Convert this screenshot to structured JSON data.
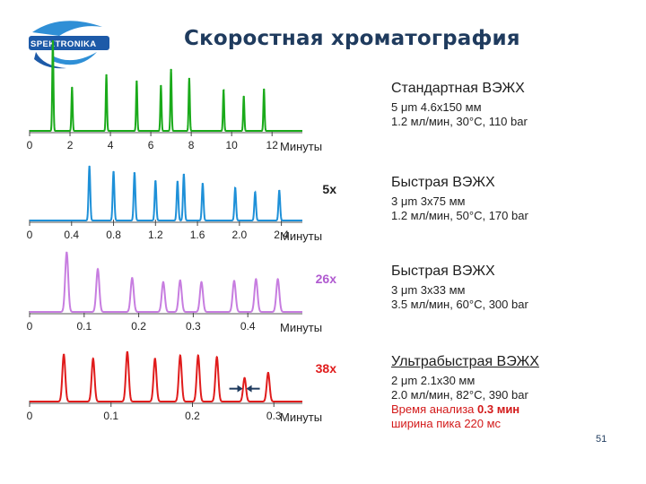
{
  "slide": {
    "title": "Скоростная хроматография",
    "logo_text": "SPEKTRONIKA",
    "page_number": "51",
    "logo_colors": {
      "blue": "#1d5aa8",
      "light": "#2f8fd6"
    }
  },
  "panels": [
    {
      "color": "#1aaa1a",
      "factor": "",
      "method": "Стандартная ВЭЖХ",
      "line1": "5 μm 4.6х150 мм",
      "line2": "1.2 мл/мин, 30°C, 110 bar"
    },
    {
      "color": "#1e90d8",
      "factor": "5x",
      "method": "Быстрая ВЭЖХ",
      "line1": "3 μm 3х75 мм",
      "line2": "1.2 мл/мин, 50°C, 170 bar"
    },
    {
      "color": "#c77de0",
      "factor": "26x",
      "method": "Быстрая ВЭЖХ",
      "line1": "3 μm 3х33 мм",
      "line2": "3.5 мл/мин, 60°C, 300 bar"
    },
    {
      "color": "#e01c1c",
      "factor": "38x",
      "method": "Ультрабыстрая ВЭЖХ",
      "line1": "2 μm 2.1х30 мм",
      "line2": "2.0 мл/мин, 82°C, 390 bar",
      "analysis_prefix": "Время анализа ",
      "analysis_value": "0.3 мин",
      "peak_width": "ширина пика 220 мс"
    }
  ],
  "chart_data": [
    {
      "type": "line",
      "xlabel": "Минуты",
      "xlim": [
        0,
        13.5
      ],
      "ticks": [
        0,
        2,
        4,
        6,
        8,
        10,
        12
      ],
      "tick_labels": [
        "0",
        "2",
        "4",
        "6",
        "8",
        "10",
        "12"
      ],
      "peaks": [
        {
          "t": 1.15,
          "h": 1.0
        },
        {
          "t": 2.1,
          "h": 0.48
        },
        {
          "t": 3.8,
          "h": 0.62
        },
        {
          "t": 5.3,
          "h": 0.55
        },
        {
          "t": 6.5,
          "h": 0.5
        },
        {
          "t": 7.0,
          "h": 0.68
        },
        {
          "t": 7.9,
          "h": 0.58
        },
        {
          "t": 9.6,
          "h": 0.45
        },
        {
          "t": 10.6,
          "h": 0.38
        },
        {
          "t": 11.6,
          "h": 0.46
        }
      ],
      "peak_width": 0.03
    },
    {
      "type": "line",
      "xlabel": "Минуты",
      "xlim": [
        0,
        2.6
      ],
      "ticks": [
        0,
        0.4,
        0.8,
        1.2,
        1.6,
        2.0,
        2.4
      ],
      "tick_labels": [
        "0",
        "0.4",
        "0.8",
        "1.2",
        "1.6",
        "2.0",
        "2.4"
      ],
      "peaks": [
        {
          "t": 0.57,
          "h": 1.0
        },
        {
          "t": 0.8,
          "h": 0.9
        },
        {
          "t": 1.0,
          "h": 0.88
        },
        {
          "t": 1.2,
          "h": 0.73
        },
        {
          "t": 1.41,
          "h": 0.72
        },
        {
          "t": 1.47,
          "h": 0.85
        },
        {
          "t": 1.65,
          "h": 0.68
        },
        {
          "t": 1.96,
          "h": 0.6
        },
        {
          "t": 2.15,
          "h": 0.52
        },
        {
          "t": 2.38,
          "h": 0.55
        }
      ],
      "peak_width": 0.008
    },
    {
      "type": "line",
      "xlabel": "Минуты",
      "xlim": [
        0,
        0.5
      ],
      "ticks": [
        0,
        0.1,
        0.2,
        0.3,
        0.4
      ],
      "tick_labels": [
        "0",
        "0.1",
        "0.2",
        "0.3",
        "0.4"
      ],
      "peaks": [
        {
          "t": 0.068,
          "h": 1.0
        },
        {
          "t": 0.125,
          "h": 0.72
        },
        {
          "t": 0.188,
          "h": 0.57
        },
        {
          "t": 0.245,
          "h": 0.5
        },
        {
          "t": 0.276,
          "h": 0.53
        },
        {
          "t": 0.315,
          "h": 0.5
        },
        {
          "t": 0.375,
          "h": 0.52
        },
        {
          "t": 0.415,
          "h": 0.55
        },
        {
          "t": 0.455,
          "h": 0.55
        }
      ],
      "peak_width": 0.0028
    },
    {
      "type": "line",
      "xlabel": "Минуты",
      "xlim": [
        0,
        0.335
      ],
      "ticks": [
        0,
        0.1,
        0.2,
        0.3
      ],
      "tick_labels": [
        "0",
        "0.1",
        "0.2",
        "0.3"
      ],
      "peaks": [
        {
          "t": 0.042,
          "h": 0.9
        },
        {
          "t": 0.078,
          "h": 0.82
        },
        {
          "t": 0.12,
          "h": 0.95
        },
        {
          "t": 0.154,
          "h": 0.82
        },
        {
          "t": 0.185,
          "h": 0.88
        },
        {
          "t": 0.207,
          "h": 0.88
        },
        {
          "t": 0.23,
          "h": 0.85
        },
        {
          "t": 0.264,
          "h": 0.45
        },
        {
          "t": 0.293,
          "h": 0.55
        }
      ],
      "peak_width": 0.0018,
      "annotation": "peak width arrows"
    }
  ]
}
